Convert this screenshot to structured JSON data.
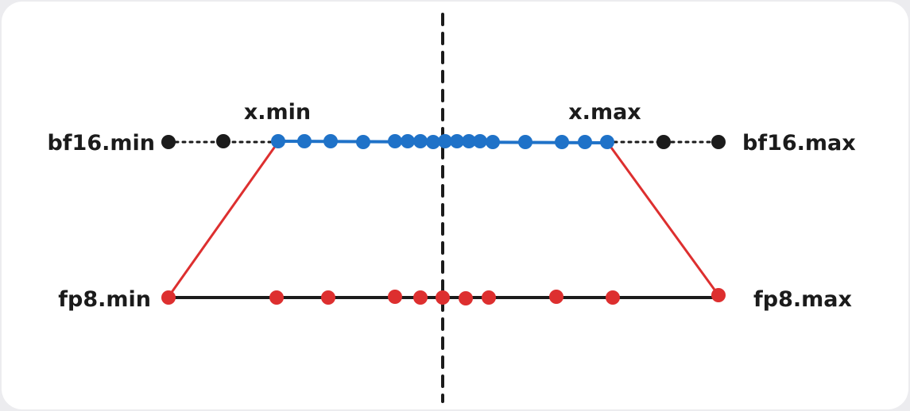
{
  "labels": {
    "bf16_min": "bf16.min",
    "bf16_max": "bf16.max",
    "x_min": "x.min",
    "x_max": "x.max",
    "fp8_min": "fp8.min",
    "fp8_max": "fp8.max"
  },
  "colors": {
    "background": "#ffffff",
    "blue": "#1f72c8",
    "red": "#dd2f2f",
    "black": "#1b1b1b"
  }
}
